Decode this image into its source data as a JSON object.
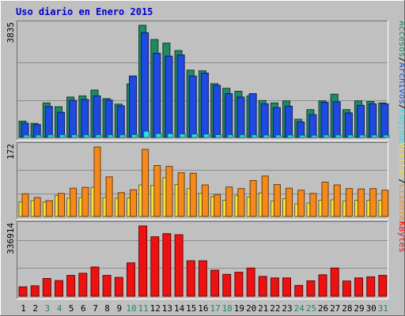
{
  "title": "Uso diario en Enero 2015",
  "colors": {
    "title": "#0000cc",
    "hits": "#1f8a63",
    "files": "#1f49e0",
    "pages": "#2ee0e8",
    "visits": "#f5e23a",
    "visitors": "#f58a1a",
    "kbytes": "#ee1111",
    "weekend_label": "#1f8a63",
    "weekday_label": "#000000",
    "panel_bg": "#c0c0c0"
  },
  "legend": {
    "top": [
      {
        "text": "Accesos",
        "color_key": "hits"
      },
      {
        "text": "/",
        "color_key": "separator"
      },
      {
        "text": "Archivos",
        "color_key": "files"
      },
      {
        "text": "/",
        "color_key": "separator"
      },
      {
        "text": "Páginas",
        "color_key": "pages"
      }
    ],
    "middle": [
      {
        "text": "Visitas",
        "color_key": "visits"
      },
      {
        "text": "/",
        "color_key": "separator"
      },
      {
        "text": "Clientes",
        "color_key": "visitors"
      }
    ],
    "bottom": [
      {
        "text": "KBytes",
        "color_key": "kbytes"
      }
    ]
  },
  "chart_data": [
    {
      "type": "bar",
      "panel": "top",
      "ymax_label": "3835",
      "ymax": 3835,
      "x": [
        1,
        2,
        3,
        4,
        5,
        6,
        7,
        8,
        9,
        10,
        11,
        12,
        13,
        14,
        15,
        16,
        17,
        18,
        19,
        20,
        21,
        22,
        23,
        24,
        25,
        26,
        27,
        28,
        29,
        30,
        31
      ],
      "series": [
        {
          "name": "Accesos",
          "color_key": "hits",
          "values": [
            560,
            480,
            1180,
            1050,
            1380,
            1420,
            1620,
            1330,
            1140,
            1830,
            3835,
            3350,
            3225,
            2970,
            2300,
            2280,
            1840,
            1680,
            1580,
            1420,
            1260,
            1180,
            1250,
            620,
            950,
            1250,
            1480,
            950,
            1250,
            1230,
            1180
          ]
        },
        {
          "name": "Archivos",
          "color_key": "files",
          "values": [
            490,
            440,
            1060,
            860,
            1270,
            1300,
            1420,
            1280,
            1080,
            2100,
            3580,
            2880,
            2780,
            2820,
            2100,
            2200,
            1780,
            1500,
            1380,
            1500,
            1150,
            1020,
            1070,
            530,
            780,
            1200,
            1220,
            840,
            1100,
            1150,
            1150
          ]
        },
        {
          "name": "Páginas",
          "color_key": "pages",
          "values": [
            80,
            80,
            90,
            90,
            90,
            90,
            90,
            90,
            90,
            95,
            210,
            130,
            130,
            115,
            115,
            110,
            95,
            90,
            90,
            90,
            80,
            80,
            80,
            75,
            75,
            85,
            85,
            80,
            80,
            80,
            80
          ]
        }
      ]
    },
    {
      "type": "bar",
      "panel": "middle",
      "ymax_label": "172",
      "ymax": 172,
      "x": [
        1,
        2,
        3,
        4,
        5,
        6,
        7,
        8,
        9,
        10,
        11,
        12,
        13,
        14,
        15,
        16,
        17,
        18,
        19,
        20,
        21,
        22,
        23,
        24,
        25,
        26,
        27,
        28,
        29,
        30,
        31
      ],
      "series": [
        {
          "name": "Visitas",
          "color_key": "visits",
          "values": [
            36,
            39,
            36,
            52,
            45,
            47,
            72,
            47,
            45,
            46,
            78,
            77,
            96,
            79,
            69,
            57,
            49,
            40,
            52,
            48,
            58,
            38,
            44,
            31,
            33,
            40,
            41,
            38,
            40,
            40,
            40
          ]
        },
        {
          "name": "Clientes",
          "color_key": "visitors",
          "values": [
            56,
            47,
            39,
            57,
            70,
            72,
            172,
            98,
            59,
            66,
            166,
            126,
            124,
            108,
            107,
            78,
            54,
            73,
            69,
            89,
            100,
            79,
            70,
            65,
            57,
            85,
            78,
            69,
            68,
            69,
            65
          ]
        }
      ]
    },
    {
      "type": "bar",
      "panel": "bottom",
      "ymax_label": "336914",
      "ymax": 336914,
      "x": [
        1,
        2,
        3,
        4,
        5,
        6,
        7,
        8,
        9,
        10,
        11,
        12,
        13,
        14,
        15,
        16,
        17,
        18,
        19,
        20,
        21,
        22,
        23,
        24,
        25,
        26,
        27,
        28,
        29,
        30,
        31
      ],
      "series": [
        {
          "name": "KBytes",
          "color_key": "kbytes",
          "values": [
            45000,
            50000,
            85000,
            75000,
            100000,
            110000,
            140000,
            100000,
            90000,
            160000,
            336914,
            285000,
            300000,
            295000,
            170000,
            170000,
            125000,
            105000,
            115000,
            135000,
            95000,
            88000,
            88000,
            52000,
            74000,
            103000,
            135000,
            73000,
            88000,
            93000,
            100000
          ]
        }
      ]
    }
  ],
  "x_labels": [
    {
      "text": "1",
      "weekend": false
    },
    {
      "text": "2",
      "weekend": false
    },
    {
      "text": "3",
      "weekend": true
    },
    {
      "text": "4",
      "weekend": true
    },
    {
      "text": "5",
      "weekend": false
    },
    {
      "text": "6",
      "weekend": false
    },
    {
      "text": "7",
      "weekend": false
    },
    {
      "text": "8",
      "weekend": false
    },
    {
      "text": "9",
      "weekend": false
    },
    {
      "text": "10",
      "weekend": true
    },
    {
      "text": "11",
      "weekend": true
    },
    {
      "text": "12",
      "weekend": false
    },
    {
      "text": "13",
      "weekend": false
    },
    {
      "text": "14",
      "weekend": false
    },
    {
      "text": "15",
      "weekend": false
    },
    {
      "text": "16",
      "weekend": false
    },
    {
      "text": "17",
      "weekend": true
    },
    {
      "text": "18",
      "weekend": true
    },
    {
      "text": "19",
      "weekend": false
    },
    {
      "text": "20",
      "weekend": false
    },
    {
      "text": "21",
      "weekend": false
    },
    {
      "text": "22",
      "weekend": false
    },
    {
      "text": "23",
      "weekend": false
    },
    {
      "text": "24",
      "weekend": true
    },
    {
      "text": "25",
      "weekend": true
    },
    {
      "text": "26",
      "weekend": false
    },
    {
      "text": "27",
      "weekend": false
    },
    {
      "text": "28",
      "weekend": false
    },
    {
      "text": "29",
      "weekend": false
    },
    {
      "text": "30",
      "weekend": false
    },
    {
      "text": "31",
      "weekend": true
    }
  ]
}
